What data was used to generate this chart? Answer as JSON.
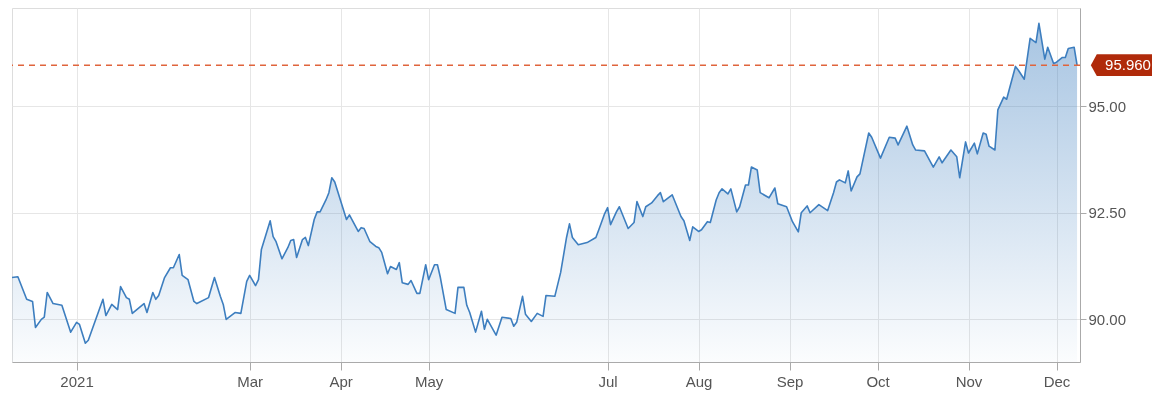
{
  "chart_data": {
    "type": "area",
    "x": [
      "2020-12-10",
      "2020-12-12",
      "2020-12-15",
      "2020-12-17",
      "2020-12-18",
      "2020-12-20",
      "2020-12-21",
      "2020-12-22",
      "2020-12-24",
      "2020-12-27",
      "2020-12-30",
      "2021-01-01",
      "2021-01-02",
      "2021-01-04",
      "2021-01-05",
      "2021-01-10",
      "2021-01-11",
      "2021-01-13",
      "2021-01-15",
      "2021-01-16",
      "2021-01-18",
      "2021-01-19",
      "2021-01-20",
      "2021-01-24",
      "2021-01-25",
      "2021-01-27",
      "2021-01-28",
      "2021-01-29",
      "2021-01-31",
      "2021-02-02",
      "2021-02-03",
      "2021-02-05",
      "2021-02-06",
      "2021-02-08",
      "2021-02-10",
      "2021-02-11",
      "2021-02-15",
      "2021-02-17",
      "2021-02-19",
      "2021-02-20",
      "2021-02-21",
      "2021-02-24",
      "2021-02-26",
      "2021-02-28",
      "2021-03-01",
      "2021-03-03",
      "2021-03-04",
      "2021-03-05",
      "2021-03-08",
      "2021-03-09",
      "2021-03-10",
      "2021-03-12",
      "2021-03-14",
      "2021-03-15",
      "2021-03-16",
      "2021-03-17",
      "2021-03-19",
      "2021-03-20",
      "2021-03-21",
      "2021-03-23",
      "2021-03-24",
      "2021-03-25",
      "2021-03-27",
      "2021-03-28",
      "2021-03-29",
      "2021-03-30",
      "2021-04-03",
      "2021-04-04",
      "2021-04-07",
      "2021-04-08",
      "2021-04-09",
      "2021-04-11",
      "2021-04-13",
      "2021-04-14",
      "2021-04-15",
      "2021-04-17",
      "2021-04-18",
      "2021-04-20",
      "2021-04-21",
      "2021-04-22",
      "2021-04-24",
      "2021-04-25",
      "2021-04-27",
      "2021-04-28",
      "2021-04-30",
      "2021-05-01",
      "2021-05-03",
      "2021-05-04",
      "2021-05-05",
      "2021-05-07",
      "2021-05-10",
      "2021-05-11",
      "2021-05-13",
      "2021-05-14",
      "2021-05-15",
      "2021-05-17",
      "2021-05-19",
      "2021-05-20",
      "2021-05-21",
      "2021-05-24",
      "2021-05-26",
      "2021-05-29",
      "2021-05-30",
      "2021-05-31",
      "2021-06-02",
      "2021-06-03",
      "2021-06-05",
      "2021-06-07",
      "2021-06-09",
      "2021-06-10",
      "2021-06-13",
      "2021-06-15",
      "2021-06-17",
      "2021-06-18",
      "2021-06-19",
      "2021-06-21",
      "2021-06-24",
      "2021-06-27",
      "2021-06-28",
      "2021-06-30",
      "2021-07-01",
      "2021-07-02",
      "2021-07-04",
      "2021-07-05",
      "2021-07-08",
      "2021-07-10",
      "2021-07-11",
      "2021-07-13",
      "2021-07-14",
      "2021-07-16",
      "2021-07-18",
      "2021-07-19",
      "2021-07-20",
      "2021-07-23",
      "2021-07-26",
      "2021-07-27",
      "2021-07-29",
      "2021-07-30",
      "2021-08-01",
      "2021-08-02",
      "2021-08-04",
      "2021-08-05",
      "2021-08-07",
      "2021-08-08",
      "2021-08-09",
      "2021-08-11",
      "2021-08-12",
      "2021-08-14",
      "2021-08-15",
      "2021-08-17",
      "2021-08-18",
      "2021-08-19",
      "2021-08-21",
      "2021-08-22",
      "2021-08-25",
      "2021-08-27",
      "2021-08-28",
      "2021-08-31",
      "2021-09-02",
      "2021-09-04",
      "2021-09-05",
      "2021-09-07",
      "2021-09-08",
      "2021-09-11",
      "2021-09-14",
      "2021-09-16",
      "2021-09-17",
      "2021-09-18",
      "2021-09-20",
      "2021-09-21",
      "2021-09-22",
      "2021-09-24",
      "2021-09-25",
      "2021-09-28",
      "2021-09-29",
      "2021-10-02",
      "2021-10-05",
      "2021-10-07",
      "2021-10-08",
      "2021-10-11",
      "2021-10-13",
      "2021-10-14",
      "2021-10-17",
      "2021-10-20",
      "2021-10-22",
      "2021-10-23",
      "2021-10-26",
      "2021-10-28",
      "2021-10-29",
      "2021-10-31",
      "2021-11-01",
      "2021-11-03",
      "2021-11-04",
      "2021-11-06",
      "2021-11-07",
      "2021-11-08",
      "2021-11-10",
      "2021-11-11",
      "2021-11-13",
      "2021-11-14",
      "2021-11-15",
      "2021-11-17",
      "2021-11-18",
      "2021-11-20",
      "2021-11-22",
      "2021-11-24",
      "2021-11-25",
      "2021-11-27",
      "2021-11-28",
      "2021-11-30",
      "2021-12-01",
      "2021-12-03",
      "2021-12-04",
      "2021-12-05",
      "2021-12-07",
      "2021-12-08"
    ],
    "series": [
      {
        "color": "#3d7ebf",
        "values": [
          90.98,
          91.0,
          90.47,
          90.42,
          89.81,
          90.0,
          90.05,
          90.63,
          90.37,
          90.33,
          89.7,
          89.93,
          89.88,
          89.44,
          89.51,
          90.47,
          90.09,
          90.35,
          90.23,
          90.77,
          90.51,
          90.47,
          90.14,
          90.37,
          90.16,
          90.63,
          90.47,
          90.56,
          90.98,
          91.21,
          91.21,
          91.52,
          91.03,
          90.93,
          90.42,
          90.37,
          90.51,
          90.98,
          90.54,
          90.35,
          90.0,
          90.16,
          90.14,
          90.89,
          91.03,
          90.79,
          90.93,
          91.64,
          92.31,
          91.94,
          91.82,
          91.42,
          91.68,
          91.85,
          91.87,
          91.45,
          91.87,
          91.92,
          91.73,
          92.34,
          92.52,
          92.52,
          92.8,
          92.97,
          93.32,
          93.22,
          92.34,
          92.45,
          92.06,
          92.15,
          92.13,
          91.82,
          91.71,
          91.68,
          91.57,
          91.07,
          91.24,
          91.17,
          91.33,
          90.86,
          90.82,
          90.91,
          90.61,
          90.61,
          91.28,
          90.93,
          91.28,
          91.28,
          90.98,
          90.23,
          90.14,
          90.75,
          90.75,
          90.33,
          90.16,
          89.7,
          90.19,
          89.77,
          90.0,
          89.63,
          90.05,
          90.02,
          89.84,
          89.93,
          90.54,
          90.12,
          89.95,
          90.14,
          90.07,
          90.56,
          90.54,
          91.1,
          91.92,
          92.24,
          91.92,
          91.75,
          91.8,
          91.92,
          92.1,
          92.48,
          92.62,
          92.22,
          92.52,
          92.64,
          92.13,
          92.27,
          92.76,
          92.41,
          92.64,
          92.73,
          92.9,
          92.97,
          92.76,
          92.92,
          92.41,
          92.31,
          91.85,
          92.17,
          92.06,
          92.1,
          92.29,
          92.27,
          92.8,
          92.97,
          93.06,
          92.94,
          93.06,
          92.52,
          92.64,
          93.15,
          93.15,
          93.57,
          93.5,
          92.97,
          92.85,
          93.08,
          92.71,
          92.64,
          92.29,
          92.05,
          92.5,
          92.66,
          92.5,
          92.69,
          92.55,
          92.97,
          93.22,
          93.27,
          93.2,
          93.48,
          93.01,
          93.34,
          93.41,
          94.37,
          94.27,
          93.78,
          94.27,
          94.25,
          94.09,
          94.53,
          94.09,
          93.97,
          93.95,
          93.57,
          93.81,
          93.67,
          93.97,
          93.81,
          93.32,
          94.16,
          93.9,
          94.13,
          93.88,
          94.37,
          94.34,
          94.06,
          93.97,
          94.91,
          95.21,
          95.16,
          95.42,
          95.93,
          95.84,
          95.63,
          96.59,
          96.49,
          96.94,
          96.1,
          96.38,
          96.0,
          96.03,
          96.14,
          96.14,
          96.35,
          96.38,
          95.96
        ]
      }
    ],
    "xlim": [
      "2020-12-10",
      "2021-12-09"
    ],
    "xticks": [
      {
        "value": "2021-01-01",
        "label": "2021"
      },
      {
        "value": "2021-03-01",
        "label": "Mar"
      },
      {
        "value": "2021-04-01",
        "label": "Apr"
      },
      {
        "value": "2021-05-01",
        "label": "May"
      },
      {
        "value": "2021-07-01",
        "label": "Jul"
      },
      {
        "value": "2021-08-01",
        "label": "Aug"
      },
      {
        "value": "2021-09-01",
        "label": "Sep"
      },
      {
        "value": "2021-10-01",
        "label": "Oct"
      },
      {
        "value": "2021-11-01",
        "label": "Nov"
      },
      {
        "value": "2021-12-01",
        "label": "Dec"
      }
    ],
    "ylim": [
      89.0,
      97.3
    ],
    "yticks": [
      {
        "value": 90,
        "label": "90.00"
      },
      {
        "value": 92.5,
        "label": "92.50"
      },
      {
        "value": 95,
        "label": "95.00"
      }
    ],
    "ref_lines": [
      {
        "axis": "y",
        "value": 95.96,
        "label": "95.960",
        "color": "#e0643c",
        "line_style": "dashed"
      }
    ],
    "grid": true,
    "marker": "none",
    "line_style": "solid"
  }
}
